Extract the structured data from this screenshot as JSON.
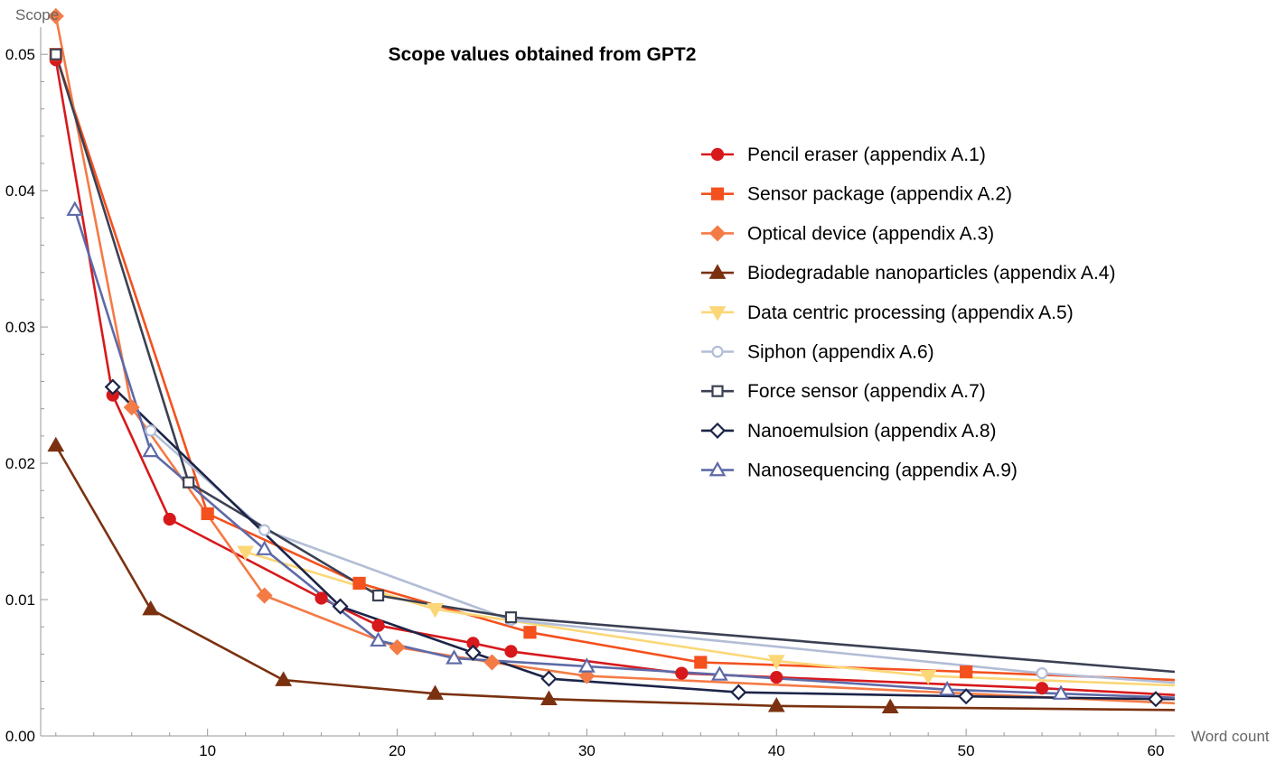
{
  "chart_data": {
    "type": "line",
    "title": "Scope values obtained from GPT2",
    "xlabel": "Word count",
    "ylabel": "Scope",
    "xlim": [
      1.2,
      61
    ],
    "ylim": [
      0,
      0.052
    ],
    "xticks": [
      10,
      20,
      30,
      40,
      50,
      60
    ],
    "xtick_labels": [
      "10",
      "20",
      "30",
      "40",
      "50",
      "60"
    ],
    "yticks": [
      0,
      0.01,
      0.02,
      0.03,
      0.04,
      0.05
    ],
    "ytick_labels": [
      "0.00",
      "0.01",
      "0.02",
      "0.03",
      "0.04",
      "0.05"
    ],
    "grid": false,
    "legend_position": "center-right",
    "series": [
      {
        "name": "Pencil eraser (appendix A.1)",
        "color": "#d7191c",
        "marker": "circle",
        "fill": true,
        "x": [
          2,
          5,
          8,
          16,
          19,
          24,
          26,
          35,
          40,
          54,
          61
        ],
        "y": [
          0.0496,
          0.025,
          0.0159,
          0.0101,
          0.0081,
          0.0068,
          0.0062,
          0.0046,
          0.0043,
          0.0035,
          0.003
        ]
      },
      {
        "name": "Sensor package (appendix A.2)",
        "color": "#f4511e",
        "marker": "square",
        "fill": true,
        "x": [
          2,
          10,
          18,
          27,
          36,
          50,
          61
        ],
        "y": [
          0.05,
          0.0163,
          0.0112,
          0.0076,
          0.0054,
          0.0047,
          0.0041
        ]
      },
      {
        "name": "Optical device (appendix A.3)",
        "color": "#f47b46",
        "marker": "diamond",
        "fill": true,
        "x": [
          2,
          6,
          13,
          20,
          25,
          30,
          61
        ],
        "y": [
          0.0528,
          0.0241,
          0.0103,
          0.0065,
          0.0054,
          0.0044,
          0.0024
        ]
      },
      {
        "name": "Biodegradable nanoparticles (appendix A.4)",
        "color": "#7b3110",
        "marker": "triangle-up",
        "fill": true,
        "x": [
          2,
          7,
          14,
          22,
          28,
          40,
          46,
          61
        ],
        "y": [
          0.0213,
          0.0093,
          0.0041,
          0.0031,
          0.0027,
          0.0022,
          0.0021,
          0.0019
        ]
      },
      {
        "name": "Data centric processing (appendix A.5)",
        "color": "#fbd778",
        "marker": "triangle-down",
        "fill": true,
        "x": [
          12,
          22,
          40,
          48,
          61
        ],
        "y": [
          0.0135,
          0.0093,
          0.0055,
          0.0044,
          0.0037
        ]
      },
      {
        "name": "Siphon (appendix A.6)",
        "color": "#b2bdd6",
        "marker": "circle",
        "fill": false,
        "x": [
          7,
          13,
          26,
          54,
          61
        ],
        "y": [
          0.0224,
          0.0151,
          0.0085,
          0.0046,
          0.0039
        ]
      },
      {
        "name": "Force sensor (appendix A.7)",
        "color": "#3b4153",
        "marker": "square",
        "fill": false,
        "x": [
          2,
          9,
          19,
          26,
          61
        ],
        "y": [
          0.05,
          0.0186,
          0.0103,
          0.0087,
          0.0047
        ]
      },
      {
        "name": "Nanoemulsion (appendix A.8)",
        "color": "#1c2448",
        "marker": "diamond",
        "fill": false,
        "x": [
          5,
          17,
          24,
          28,
          38,
          50,
          60,
          61
        ],
        "y": [
          0.0256,
          0.0095,
          0.0061,
          0.0042,
          0.0032,
          0.0029,
          0.0027,
          0.0027
        ]
      },
      {
        "name": "Nanosequencing (appendix A.9)",
        "color": "#5e6aa8",
        "marker": "triangle-up",
        "fill": false,
        "x": [
          3,
          7,
          13,
          19,
          23,
          30,
          37,
          49,
          55,
          61
        ],
        "y": [
          0.0386,
          0.0209,
          0.0137,
          0.007,
          0.0057,
          0.0051,
          0.0045,
          0.0034,
          0.0031,
          0.0028
        ]
      }
    ]
  }
}
